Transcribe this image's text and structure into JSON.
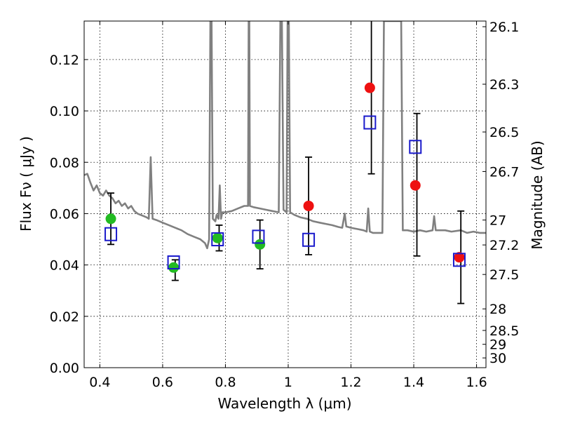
{
  "chart_data": {
    "type": "scatter",
    "title": "",
    "xlabel": "Wavelength  λ (μm)",
    "ylabel": "Flux  Fν  ( μJy )",
    "ylabel_right": "Magnitude (AB)",
    "xlim": [
      0.35,
      1.63
    ],
    "ylim": [
      0.0,
      0.135
    ],
    "grid": true,
    "x_ticks": [
      0.4,
      0.6,
      0.8,
      1.0,
      1.2,
      1.4,
      1.6
    ],
    "x_tick_labels": [
      "0.4",
      "0.6",
      "0.8",
      "1",
      "1.2",
      "1.4",
      "1.6"
    ],
    "y_ticks": [
      0.0,
      0.02,
      0.04,
      0.06,
      0.08,
      0.1,
      0.12
    ],
    "y_tick_labels": [
      "0.00",
      "0.02",
      "0.04",
      "0.06",
      "0.08",
      "0.10",
      "0.12"
    ],
    "right_ticks": [
      {
        "flux": 0.1328,
        "label": "26.1"
      },
      {
        "flux": 0.1104,
        "label": "26.3"
      },
      {
        "flux": 0.0918,
        "label": "26.5"
      },
      {
        "flux": 0.0764,
        "label": "26.7"
      },
      {
        "flux": 0.0575,
        "label": "27"
      },
      {
        "flux": 0.0478,
        "label": "27.2"
      },
      {
        "flux": 0.0363,
        "label": "27.5"
      },
      {
        "flux": 0.0229,
        "label": "28"
      },
      {
        "flux": 0.0145,
        "label": "28.5"
      },
      {
        "flux": 0.0091,
        "label": "29"
      },
      {
        "flux": 0.0038,
        "label": "30"
      }
    ],
    "series": [
      {
        "marker": "circle",
        "color": "#22bb22",
        "points": [
          {
            "x": 0.435,
            "y": 0.058
          },
          {
            "x": 0.635,
            "y": 0.039
          },
          {
            "x": 0.775,
            "y": 0.0505
          },
          {
            "x": 0.91,
            "y": 0.048
          }
        ]
      },
      {
        "marker": "circle",
        "color": "#ee1111",
        "points": [
          {
            "x": 1.065,
            "y": 0.063
          },
          {
            "x": 1.26,
            "y": 0.109
          },
          {
            "x": 1.405,
            "y": 0.071
          },
          {
            "x": 1.545,
            "y": 0.043
          }
        ]
      },
      {
        "marker": "square-open",
        "color": "#1a1acc",
        "points": [
          {
            "x": 0.435,
            "y": 0.052
          },
          {
            "x": 0.635,
            "y": 0.041
          },
          {
            "x": 0.775,
            "y": 0.05
          },
          {
            "x": 0.905,
            "y": 0.051
          },
          {
            "x": 1.065,
            "y": 0.0498
          },
          {
            "x": 1.26,
            "y": 0.0955
          },
          {
            "x": 1.405,
            "y": 0.086
          },
          {
            "x": 1.545,
            "y": 0.042
          }
        ]
      }
    ],
    "error_bars": [
      {
        "x": 0.435,
        "low": 0.048,
        "high": 0.068
      },
      {
        "x": 0.64,
        "low": 0.034,
        "high": 0.042
      },
      {
        "x": 0.78,
        "low": 0.0455,
        "high": 0.0555
      },
      {
        "x": 0.91,
        "low": 0.0385,
        "high": 0.0575
      },
      {
        "x": 1.065,
        "low": 0.044,
        "high": 0.082
      },
      {
        "x": 1.265,
        "low": 0.0755,
        "high": 0.135
      },
      {
        "x": 1.41,
        "low": 0.0435,
        "high": 0.099
      },
      {
        "x": 1.55,
        "low": 0.025,
        "high": 0.061
      }
    ],
    "spectrum": {
      "color": "#808080",
      "points": [
        [
          0.35,
          0.075
        ],
        [
          0.36,
          0.0755
        ],
        [
          0.37,
          0.072
        ],
        [
          0.38,
          0.069
        ],
        [
          0.39,
          0.071
        ],
        [
          0.4,
          0.068
        ],
        [
          0.41,
          0.067
        ],
        [
          0.42,
          0.069
        ],
        [
          0.43,
          0.067
        ],
        [
          0.44,
          0.066
        ],
        [
          0.45,
          0.064
        ],
        [
          0.46,
          0.065
        ],
        [
          0.47,
          0.063
        ],
        [
          0.48,
          0.064
        ],
        [
          0.49,
          0.062
        ],
        [
          0.5,
          0.063
        ],
        [
          0.51,
          0.061
        ],
        [
          0.52,
          0.06
        ],
        [
          0.53,
          0.0595
        ],
        [
          0.54,
          0.059
        ],
        [
          0.55,
          0.0585
        ],
        [
          0.556,
          0.058
        ],
        [
          0.562,
          0.082
        ],
        [
          0.568,
          0.058
        ],
        [
          0.58,
          0.0575
        ],
        [
          0.6,
          0.0565
        ],
        [
          0.62,
          0.0555
        ],
        [
          0.64,
          0.0545
        ],
        [
          0.66,
          0.0535
        ],
        [
          0.68,
          0.052
        ],
        [
          0.7,
          0.051
        ],
        [
          0.72,
          0.05
        ],
        [
          0.735,
          0.0485
        ],
        [
          0.742,
          0.0465
        ],
        [
          0.748,
          0.05
        ],
        [
          0.752,
          0.135
        ],
        [
          0.756,
          0.135
        ],
        [
          0.76,
          0.058
        ],
        [
          0.768,
          0.057
        ],
        [
          0.772,
          0.0595
        ],
        [
          0.778,
          0.058
        ],
        [
          0.782,
          0.071
        ],
        [
          0.786,
          0.058
        ],
        [
          0.79,
          0.0605
        ],
        [
          0.8,
          0.0605
        ],
        [
          0.82,
          0.061
        ],
        [
          0.84,
          0.062
        ],
        [
          0.86,
          0.063
        ],
        [
          0.872,
          0.063
        ],
        [
          0.874,
          0.135
        ],
        [
          0.876,
          0.135
        ],
        [
          0.878,
          0.063
        ],
        [
          0.89,
          0.0625
        ],
        [
          0.91,
          0.062
        ],
        [
          0.93,
          0.0615
        ],
        [
          0.95,
          0.061
        ],
        [
          0.97,
          0.0605
        ],
        [
          0.975,
          0.135
        ],
        [
          0.98,
          0.135
        ],
        [
          0.985,
          0.0615
        ],
        [
          0.995,
          0.0605
        ],
        [
          0.998,
          0.135
        ],
        [
          1.002,
          0.135
        ],
        [
          1.006,
          0.0605
        ],
        [
          1.02,
          0.0595
        ],
        [
          1.04,
          0.0585
        ],
        [
          1.06,
          0.058
        ],
        [
          1.08,
          0.057
        ],
        [
          1.1,
          0.0565
        ],
        [
          1.12,
          0.056
        ],
        [
          1.14,
          0.0555
        ],
        [
          1.16,
          0.0548
        ],
        [
          1.172,
          0.0545
        ],
        [
          1.18,
          0.06
        ],
        [
          1.185,
          0.055
        ],
        [
          1.2,
          0.0545
        ],
        [
          1.22,
          0.054
        ],
        [
          1.24,
          0.0535
        ],
        [
          1.25,
          0.053
        ],
        [
          1.255,
          0.062
        ],
        [
          1.26,
          0.053
        ],
        [
          1.27,
          0.0525
        ],
        [
          1.29,
          0.0525
        ],
        [
          1.3,
          0.0525
        ],
        [
          1.305,
          0.135
        ],
        [
          1.31,
          0.135
        ],
        [
          1.33,
          0.135
        ],
        [
          1.335,
          0.135
        ],
        [
          1.34,
          0.135
        ],
        [
          1.345,
          0.135
        ],
        [
          1.36,
          0.135
        ],
        [
          1.365,
          0.0535
        ],
        [
          1.38,
          0.0535
        ],
        [
          1.4,
          0.053
        ],
        [
          1.42,
          0.0535
        ],
        [
          1.44,
          0.053
        ],
        [
          1.46,
          0.0535
        ],
        [
          1.465,
          0.059
        ],
        [
          1.47,
          0.0535
        ],
        [
          1.5,
          0.0535
        ],
        [
          1.52,
          0.053
        ],
        [
          1.55,
          0.0535
        ],
        [
          1.57,
          0.0525
        ],
        [
          1.59,
          0.053
        ],
        [
          1.61,
          0.0525
        ],
        [
          1.63,
          0.0525
        ]
      ]
    }
  }
}
